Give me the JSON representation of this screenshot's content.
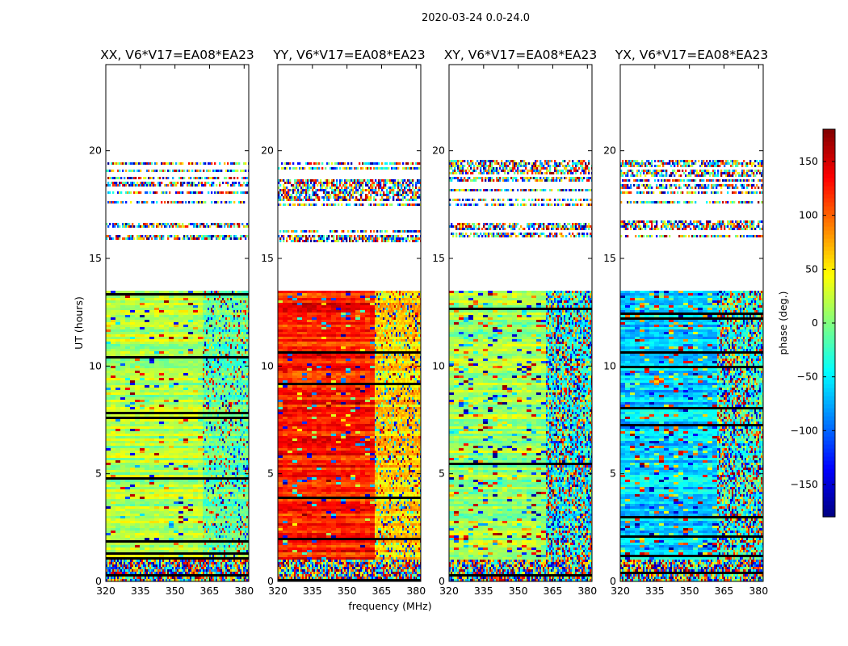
{
  "chart_data": {
    "type": "heatmap",
    "suptitle": "2020-03-24 0.0-24.0",
    "xlabel": "frequency (MHz)",
    "ylabel": "UT (hours)",
    "xlim": [
      320,
      382
    ],
    "ylim": [
      0,
      24
    ],
    "xticks": [
      320,
      335,
      350,
      365,
      380
    ],
    "yticks": [
      0,
      5,
      10,
      15,
      20
    ],
    "panels": [
      {
        "title": "XX, V6*V17=EA08*EA23",
        "low_band_phase": 20,
        "high_band_phase": -10,
        "noise": 0.35
      },
      {
        "title": "YY, V6*V17=EA08*EA23",
        "low_band_phase": 125,
        "high_band_phase": 60,
        "noise": 0.35
      },
      {
        "title": "XY, V6*V17=EA08*EA23",
        "low_band_phase": 10,
        "high_band_phase": -40,
        "noise": 0.8
      },
      {
        "title": "YX, V6*V17=EA08*EA23",
        "low_band_phase": -60,
        "high_band_phase": -30,
        "noise": 0.8
      }
    ],
    "band_split_mhz": 361,
    "flagged_ranges_hours": [
      [
        13.5,
        15.8
      ],
      [
        16.9,
        17.4
      ],
      [
        19.6,
        24
      ]
    ],
    "colorbar": {
      "label": "phase (deg.)",
      "vmin": -180,
      "vmax": 180,
      "ticks": [
        -150,
        -100,
        -50,
        0,
        50,
        100,
        150
      ],
      "tick_labels": [
        "−150",
        "−100",
        "−50",
        "0",
        "50",
        "100",
        "150"
      ],
      "colormap": "jet"
    }
  }
}
